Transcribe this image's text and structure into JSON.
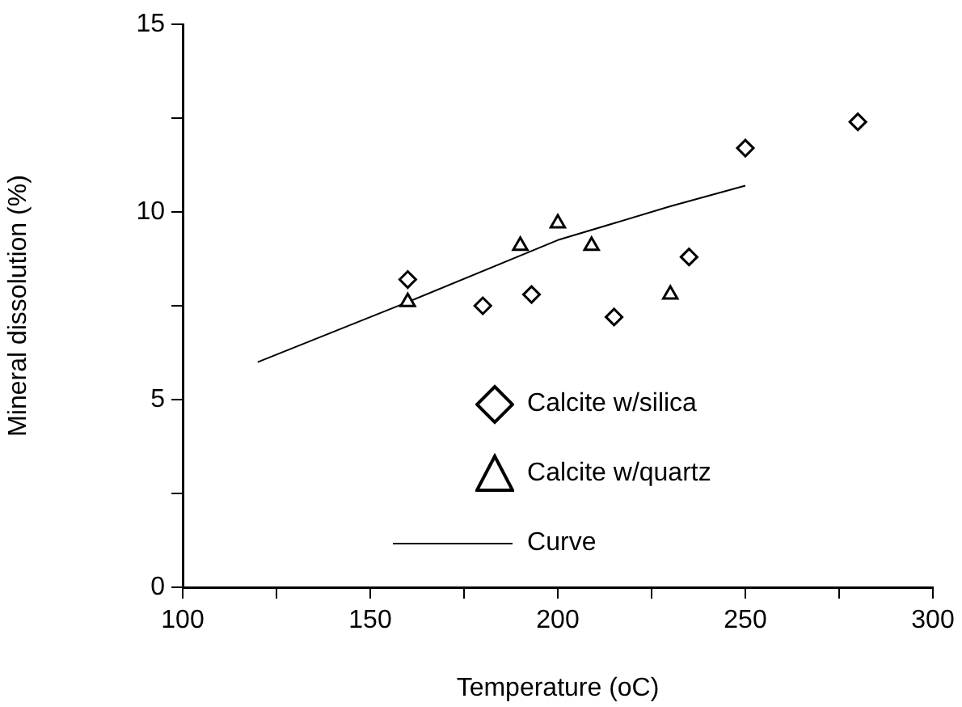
{
  "chart_data": {
    "type": "scatter",
    "xlabel": "Temperature (oC)",
    "ylabel": "Mineral dissolution (%)",
    "xlim": [
      100,
      300
    ],
    "ylim": [
      0,
      15
    ],
    "xticks": [
      100,
      {
        "value": 125,
        "label": null
      },
      150,
      {
        "value": 175,
        "label": null
      },
      200,
      {
        "value": 225,
        "label": null
      },
      250,
      {
        "value": 275,
        "label": null
      },
      300
    ],
    "yticks": [
      0,
      {
        "value": 2.5,
        "label": null
      },
      5,
      {
        "value": 7.5,
        "label": null
      },
      10,
      {
        "value": 12.5,
        "label": null
      },
      15
    ],
    "grid": false,
    "legend": "bottom",
    "series": [
      {
        "name": "Calcite w/silica",
        "color": "#000000",
        "marker": "diamond",
        "x": [
          160,
          180,
          193,
          215,
          235,
          250,
          280
        ],
        "values": [
          8.2,
          7.5,
          7.8,
          7.2,
          8.8,
          11.7,
          12.4
        ]
      },
      {
        "name": "Calcite w/quartz",
        "color": "#000000",
        "marker": "triangle",
        "x": [
          160,
          190,
          200,
          209,
          230
        ],
        "values": [
          7.6,
          9.1,
          9.7,
          9.1,
          7.8
        ]
      },
      {
        "name": "Curve",
        "type": "line",
        "color": "#000000",
        "marker": "none",
        "line_style": "solid",
        "x": [
          120,
          160,
          200,
          230,
          250
        ],
        "values": [
          6.0,
          7.6,
          9.25,
          10.15,
          10.7
        ]
      }
    ]
  }
}
